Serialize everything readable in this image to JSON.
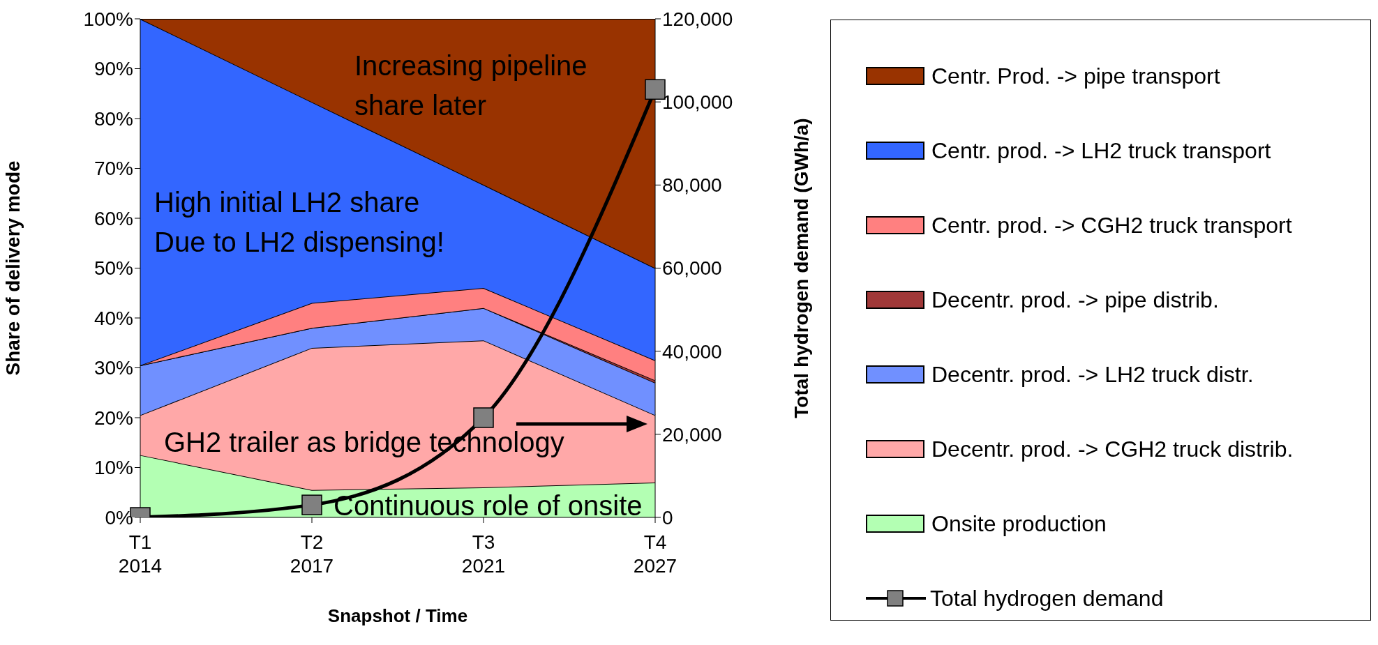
{
  "chart_data": {
    "type": "area",
    "stacked": true,
    "xlabel": "Snapshot / Time",
    "ylabel": "Share of delivery mode",
    "y2label": "Total hydrogen demand (GWh/a)",
    "categories": [
      "T1\n2014",
      "T2\n2017",
      "T3\n2021",
      "T4\n2027"
    ],
    "series": [
      {
        "name": "Onsite production",
        "color": "#b3ffb3",
        "values": [
          12.5,
          5.5,
          6,
          7
        ]
      },
      {
        "name": "Decentr. prod. -> CGH2 truck distrib.",
        "color": "#ffa8a8",
        "values": [
          8,
          28.5,
          29.5,
          13.5
        ]
      },
      {
        "name": "Decentr. prod. -> LH2 truck distr.",
        "color": "#7090ff",
        "values": [
          10,
          4,
          6.5,
          6.5
        ]
      },
      {
        "name": "Decentr. prod. -> pipe distrib.",
        "color": "#a03838",
        "values": [
          0,
          0,
          0,
          0.5
        ]
      },
      {
        "name": "Centr. prod. -> CGH2 truck transport",
        "color": "#ff8080",
        "values": [
          0,
          5,
          4,
          4
        ]
      },
      {
        "name": "Centr. prod. -> LH2 truck transport",
        "color": "#3366ff",
        "values": [
          69.5,
          40.3,
          20.7,
          18.5
        ]
      },
      {
        "name": "Centr. Prod. -> pipe transport",
        "color": "#993300",
        "values": [
          0,
          16.7,
          33.3,
          50
        ]
      },
      {
        "name": "Total hydrogen demand",
        "type": "line",
        "axis": "y2",
        "color": "#000000",
        "marker": "square",
        "line_style": "solid",
        "values": [
          0,
          3000,
          24000,
          103000
        ]
      }
    ],
    "ylim": [
      0,
      100
    ],
    "yticks": [
      {
        "value": 0,
        "label": "0%"
      },
      {
        "value": 10,
        "label": "10%"
      },
      {
        "value": 20,
        "label": "20%"
      },
      {
        "value": 30,
        "label": "30%"
      },
      {
        "value": 40,
        "label": "40%"
      },
      {
        "value": 50,
        "label": "50%"
      },
      {
        "value": 60,
        "label": "60%"
      },
      {
        "value": 70,
        "label": "70%"
      },
      {
        "value": 80,
        "label": "80%"
      },
      {
        "value": 90,
        "label": "90%"
      },
      {
        "value": 100,
        "label": "100%"
      }
    ],
    "y2lim": [
      0,
      120000
    ],
    "y2ticks": [
      0,
      {
        "value": 20000,
        "label": "20,000"
      },
      {
        "value": 40000,
        "label": "40,000"
      },
      {
        "value": 60000,
        "label": "60,000"
      },
      {
        "value": 80000,
        "label": "80,000"
      },
      {
        "value": 100000,
        "label": "100,000"
      },
      {
        "value": 120000,
        "label": "120,000"
      }
    ],
    "legend": "right",
    "annotations": [
      "Increasing pipeline\nshare later",
      "High initial LH2 share\nDue to LH2 dispensing!",
      "GH2 trailer as bridge technology",
      "Continuous role of onsite"
    ]
  }
}
